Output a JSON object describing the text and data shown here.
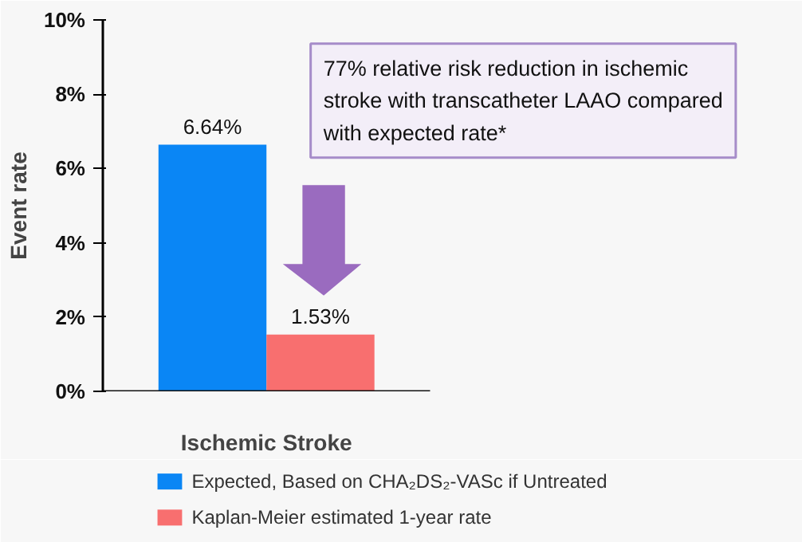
{
  "chart_data": {
    "type": "bar",
    "categories": [
      "Ischemic Stroke"
    ],
    "ylabel": "Event rate",
    "series": [
      {
        "name": "Expected, Based on CHA₂DS₂-VASc if Untreated",
        "color": "#0a86f5",
        "values": [
          6.64
        ],
        "value_labels": [
          "6.64%"
        ]
      },
      {
        "name": "Kaplan-Meier estimated 1-year rate",
        "color": "#f86f6f",
        "values": [
          1.53
        ],
        "value_labels": [
          "1.53%"
        ]
      }
    ],
    "ylim": [
      0,
      10
    ],
    "yticks": [
      {
        "value": 0,
        "label": "0%"
      },
      {
        "value": 2,
        "label": "2%"
      },
      {
        "value": 4,
        "label": "4%"
      },
      {
        "value": 6,
        "label": "6%"
      },
      {
        "value": 8,
        "label": "8%"
      },
      {
        "value": 10,
        "label": "10%"
      }
    ],
    "annotations": [
      "77% relative risk reduction in ischemic stroke with transcatheter LAAO compared with expected rate*"
    ],
    "grid": false,
    "legend": "bottom"
  }
}
